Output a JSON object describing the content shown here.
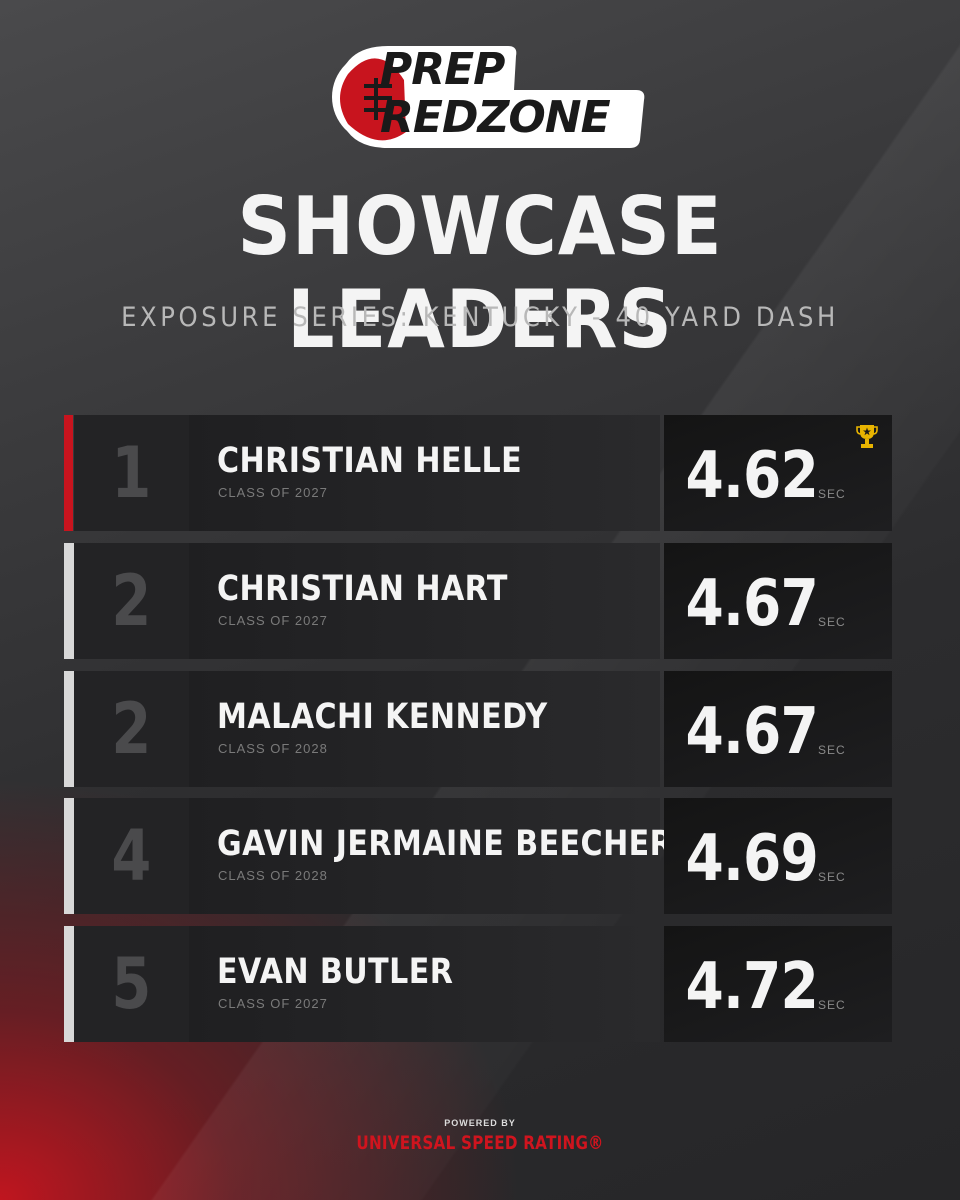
{
  "logo": {
    "line1": "PREP",
    "line2": "REDZONE"
  },
  "title": "SHOWCASE LEADERS",
  "subtitle": "EXPOSURE SERIES: KENTUCKY - 40 YARD DASH",
  "colors": {
    "accent_red": "#c8141e",
    "text_light": "#f4f4f4",
    "brand_red": "#d0141e"
  },
  "leaders": [
    {
      "rank": "1",
      "name": "CHRISTIAN HELLE",
      "class": "CLASS OF 2027",
      "time": "4.62",
      "unit": "SEC",
      "icon": "trophy-icon"
    },
    {
      "rank": "2",
      "name": "CHRISTIAN HART",
      "class": "CLASS OF 2027",
      "time": "4.67",
      "unit": "SEC"
    },
    {
      "rank": "2",
      "name": "MALACHI KENNEDY",
      "class": "CLASS OF 2028",
      "time": "4.67",
      "unit": "SEC"
    },
    {
      "rank": "4",
      "name": "GAVIN JERMAINE BEECHER",
      "class": "CLASS OF 2028",
      "time": "4.69",
      "unit": "SEC"
    },
    {
      "rank": "5",
      "name": "EVAN BUTLER",
      "class": "CLASS OF 2027",
      "time": "4.72",
      "unit": "SEC"
    }
  ],
  "footer": {
    "powered_by": "POWERED BY",
    "brand": "UNIVERSAL SPEED RATING®"
  }
}
